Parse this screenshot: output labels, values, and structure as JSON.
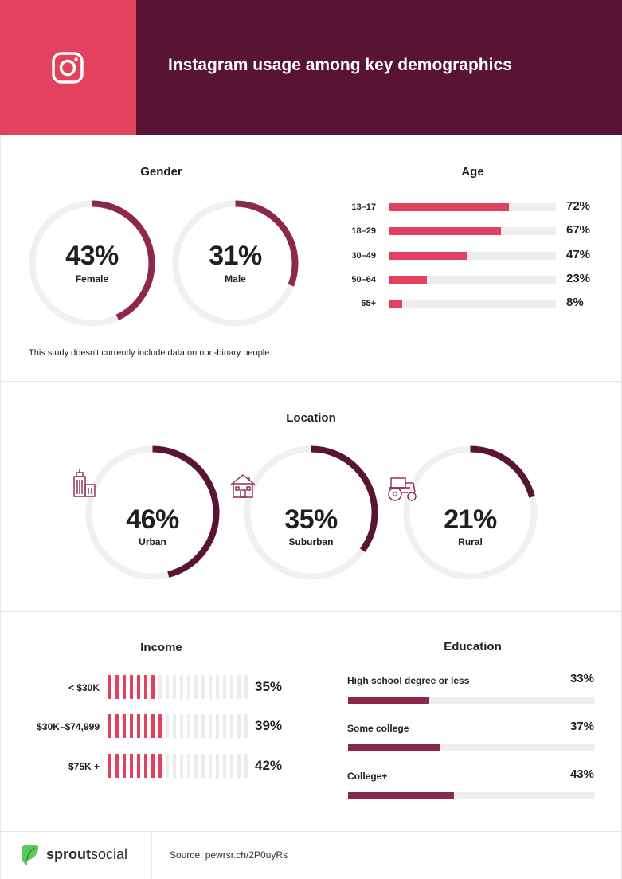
{
  "header": {
    "title": "Instagram usage among key demographics",
    "colors": {
      "left": "#e2425e",
      "right": "#5a1433"
    },
    "icon": "instagram-icon"
  },
  "gender": {
    "title": "Gender",
    "items": [
      {
        "pct": "43%",
        "value": 43,
        "label": "Female"
      },
      {
        "pct": "31%",
        "value": 31,
        "label": "Male"
      }
    ],
    "note": "This study doesn't currently include data on non-binary people.",
    "color": "#8c2848"
  },
  "age": {
    "title": "Age",
    "color": "#e2425e",
    "rows": [
      {
        "label": "13–17",
        "pct": "72%",
        "value": 72
      },
      {
        "label": "18–29",
        "pct": "67%",
        "value": 67
      },
      {
        "label": "30–49",
        "pct": "47%",
        "value": 47
      },
      {
        "label": "50–64",
        "pct": "23%",
        "value": 23
      },
      {
        "label": "65+",
        "pct": "8%",
        "value": 8
      }
    ]
  },
  "location": {
    "title": "Location",
    "color": "#5a1433",
    "items": [
      {
        "pct": "46%",
        "value": 46,
        "label": "Urban",
        "icon": "city-building-icon"
      },
      {
        "pct": "35%",
        "value": 35,
        "label": "Suburban",
        "icon": "house-icon"
      },
      {
        "pct": "21%",
        "value": 21,
        "label": "Rural",
        "icon": "tractor-icon"
      }
    ]
  },
  "income": {
    "title": "Income",
    "color": "#e2425e",
    "rows": [
      {
        "label": "< $30K",
        "pct": "35%",
        "value": 35
      },
      {
        "label": "$30K–$74,999",
        "pct": "39%",
        "value": 39
      },
      {
        "label": "$75K +",
        "pct": "42%",
        "value": 42
      }
    ]
  },
  "education": {
    "title": "Education",
    "color": "#8c2848",
    "rows": [
      {
        "label": "High school degree or less",
        "pct": "33%",
        "value": 33
      },
      {
        "label": "Some college",
        "pct": "37%",
        "value": 37
      },
      {
        "label": "College+",
        "pct": "43%",
        "value": 43
      }
    ]
  },
  "footer": {
    "brand_bold": "sprout",
    "brand_light": "social",
    "source": "Source: pewrsr.ch/2P0uyRs"
  },
  "chart_data": [
    {
      "type": "pie",
      "title": "Gender",
      "categories": [
        "Female",
        "Male"
      ],
      "values": [
        43,
        31
      ]
    },
    {
      "type": "bar",
      "title": "Age",
      "categories": [
        "13–17",
        "18–29",
        "30–49",
        "50–64",
        "65+"
      ],
      "values": [
        72,
        67,
        47,
        23,
        8
      ]
    },
    {
      "type": "pie",
      "title": "Location",
      "categories": [
        "Urban",
        "Suburban",
        "Rural"
      ],
      "values": [
        46,
        35,
        21
      ]
    },
    {
      "type": "bar",
      "title": "Income",
      "categories": [
        "< $30K",
        "$30K–$74,999",
        "$75K +"
      ],
      "values": [
        35,
        39,
        42
      ]
    },
    {
      "type": "bar",
      "title": "Education",
      "categories": [
        "High school degree or less",
        "Some college",
        "College+"
      ],
      "values": [
        33,
        37,
        43
      ]
    }
  ]
}
